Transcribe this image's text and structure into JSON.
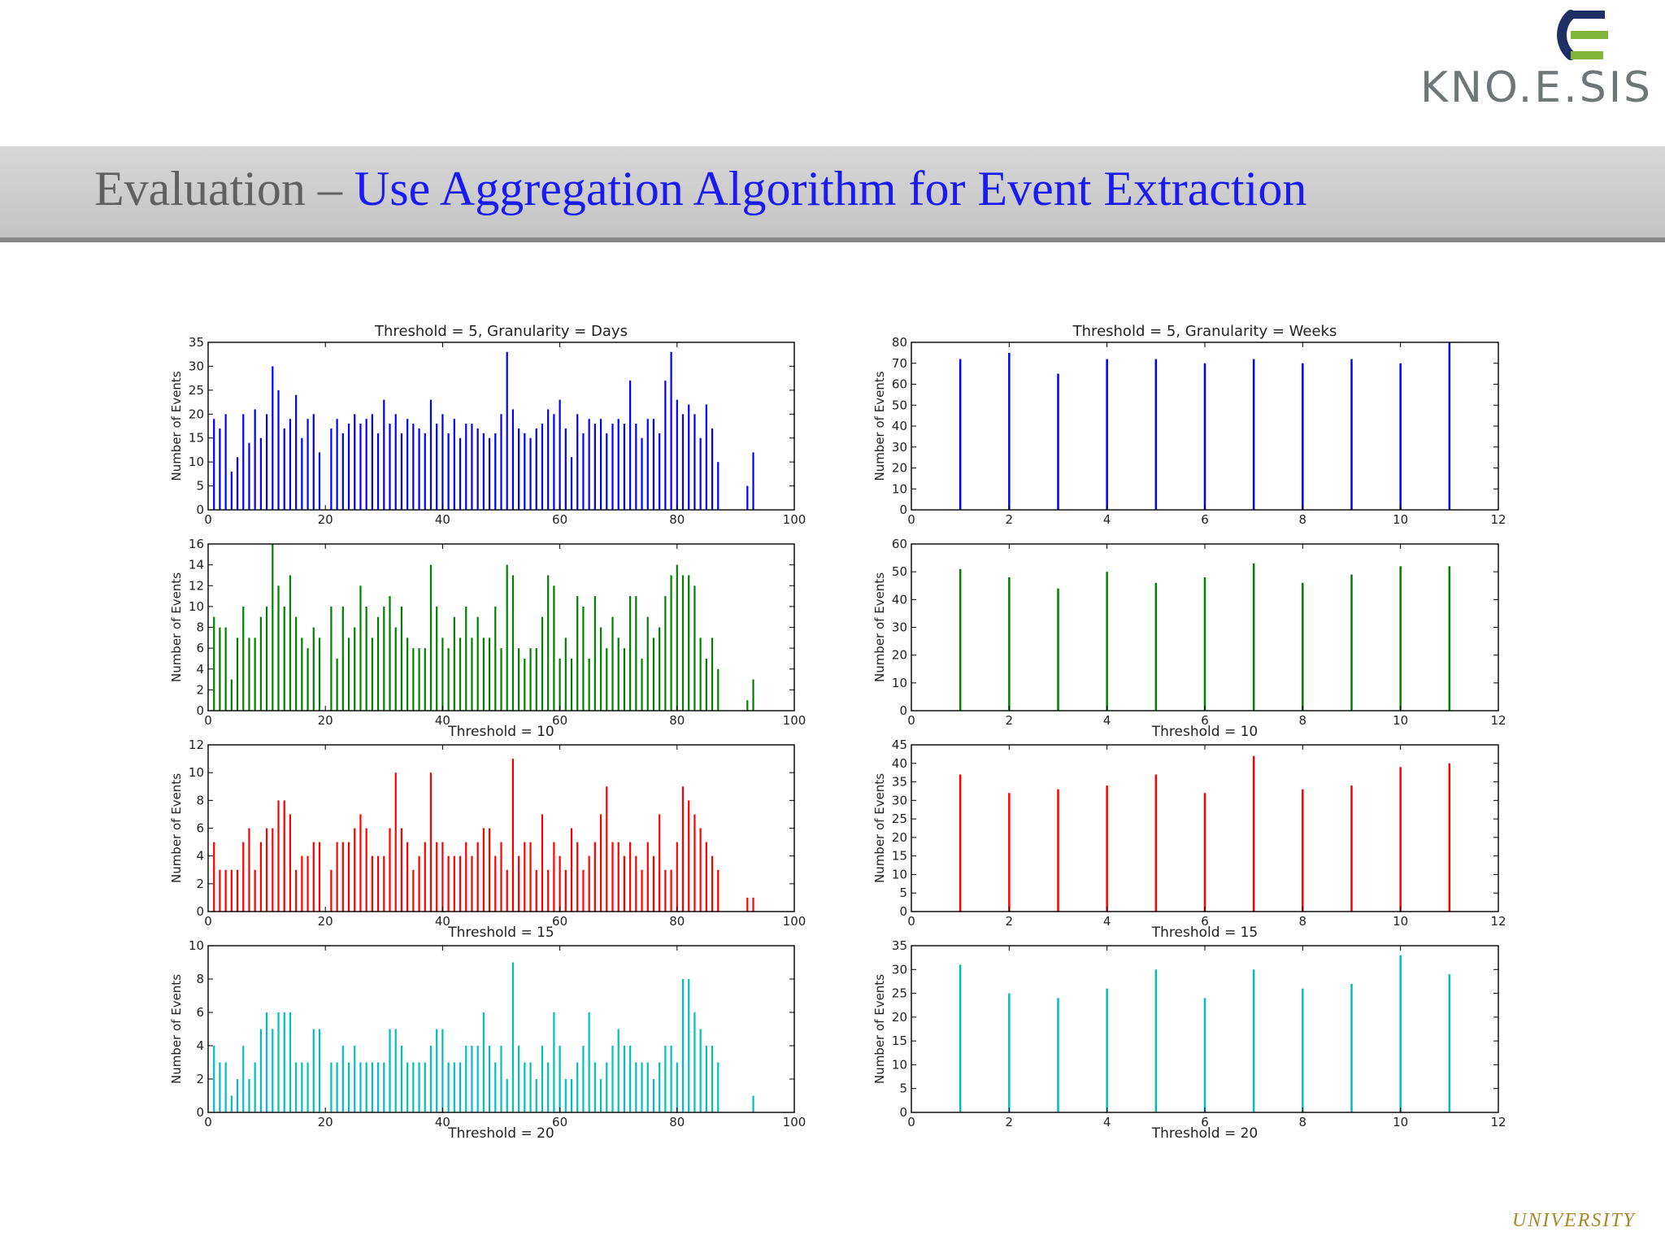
{
  "slide": {
    "title_lead": "Evaluation",
    "title_dash": "–",
    "title_rest": "Use Aggregation Algorithm for Event Extraction",
    "logo_text": "KNO.E.SIS",
    "footer_text": "UNIVERSITY",
    "colors": {
      "title_lead": "#606060",
      "title_rest": "#1a1af2",
      "band": "#c8c8c8",
      "logo_blue": "#1f2f63",
      "logo_green": "#7fb33a"
    }
  },
  "chart_data": [
    {
      "type": "bar",
      "title": "Threshold = 5, Granularity = Days",
      "xlabel": "",
      "ylabel": "Number of Events",
      "xlim": [
        0,
        100
      ],
      "ylim": [
        0,
        35
      ],
      "xticks": [
        0,
        20,
        40,
        60,
        80,
        100
      ],
      "yticks": [
        0,
        5,
        10,
        15,
        20,
        25,
        30,
        35
      ],
      "color": "#0000ff",
      "x": [
        1,
        2,
        3,
        4,
        5,
        6,
        7,
        8,
        9,
        10,
        11,
        12,
        13,
        14,
        15,
        16,
        17,
        18,
        19,
        20,
        21,
        22,
        23,
        24,
        25,
        26,
        27,
        28,
        29,
        30,
        31,
        32,
        33,
        34,
        35,
        36,
        37,
        38,
        39,
        40,
        41,
        42,
        43,
        44,
        45,
        46,
        47,
        48,
        49,
        50,
        51,
        52,
        53,
        54,
        55,
        56,
        57,
        58,
        59,
        60,
        61,
        62,
        63,
        64,
        65,
        66,
        67,
        68,
        69,
        70,
        71,
        72,
        73,
        74,
        75,
        76,
        77,
        78,
        79,
        80,
        81,
        82,
        83,
        84,
        85,
        86,
        87,
        92,
        93
      ],
      "values": [
        19,
        17,
        20,
        8,
        11,
        20,
        14,
        21,
        15,
        20,
        30,
        25,
        17,
        19,
        24,
        15,
        19,
        20,
        12,
        0,
        17,
        19,
        16,
        18,
        20,
        18,
        19,
        20,
        16,
        23,
        18,
        20,
        16,
        19,
        18,
        17,
        16,
        23,
        18,
        20,
        16,
        19,
        15,
        18,
        18,
        17,
        16,
        15,
        16,
        20,
        33,
        21,
        17,
        16,
        15,
        17,
        18,
        21,
        20,
        23,
        17,
        11,
        20,
        16,
        19,
        18,
        19,
        16,
        18,
        19,
        18,
        27,
        18,
        15,
        19,
        19,
        16,
        27,
        33,
        23,
        20,
        22,
        20,
        15,
        22,
        17,
        10,
        5,
        12
      ]
    },
    {
      "type": "bar",
      "title": "",
      "xlabel": "Threshold = 10",
      "ylabel": "Number of Events",
      "xlim": [
        0,
        100
      ],
      "ylim": [
        0,
        16
      ],
      "xticks": [
        0,
        20,
        40,
        60,
        80,
        100
      ],
      "yticks": [
        0,
        2,
        4,
        6,
        8,
        10,
        12,
        14,
        16
      ],
      "color": "#008000",
      "x": [
        1,
        2,
        3,
        4,
        5,
        6,
        7,
        8,
        9,
        10,
        11,
        12,
        13,
        14,
        15,
        16,
        17,
        18,
        19,
        20,
        21,
        22,
        23,
        24,
        25,
        26,
        27,
        28,
        29,
        30,
        31,
        32,
        33,
        34,
        35,
        36,
        37,
        38,
        39,
        40,
        41,
        42,
        43,
        44,
        45,
        46,
        47,
        48,
        49,
        50,
        51,
        52,
        53,
        54,
        55,
        56,
        57,
        58,
        59,
        60,
        61,
        62,
        63,
        64,
        65,
        66,
        67,
        68,
        69,
        70,
        71,
        72,
        73,
        74,
        75,
        76,
        77,
        78,
        79,
        80,
        81,
        82,
        83,
        84,
        85,
        86,
        87,
        92,
        93
      ],
      "values": [
        9,
        8,
        8,
        3,
        7,
        10,
        7,
        7,
        9,
        10,
        16,
        12,
        10,
        13,
        9,
        7,
        6,
        8,
        7,
        0,
        10,
        5,
        10,
        7,
        8,
        12,
        10,
        7,
        9,
        10,
        11,
        8,
        10,
        7,
        6,
        6,
        6,
        14,
        10,
        7,
        6,
        9,
        7,
        10,
        7,
        9,
        7,
        7,
        10,
        6,
        14,
        13,
        6,
        5,
        6,
        6,
        9,
        13,
        12,
        5,
        7,
        5,
        11,
        10,
        5,
        11,
        8,
        6,
        9,
        7,
        6,
        11,
        11,
        5,
        9,
        7,
        8,
        11,
        13,
        14,
        13,
        13,
        12,
        7,
        5,
        7,
        4,
        1,
        3
      ]
    },
    {
      "type": "bar",
      "title": "",
      "xlabel": "Threshold = 15",
      "ylabel": "Number of Events",
      "xlim": [
        0,
        100
      ],
      "ylim": [
        0,
        12
      ],
      "xticks": [
        0,
        20,
        40,
        60,
        80,
        100
      ],
      "yticks": [
        0,
        2,
        4,
        6,
        8,
        10,
        12
      ],
      "color": "#ff0000",
      "x": [
        1,
        2,
        3,
        4,
        5,
        6,
        7,
        8,
        9,
        10,
        11,
        12,
        13,
        14,
        15,
        16,
        17,
        18,
        19,
        20,
        21,
        22,
        23,
        24,
        25,
        26,
        27,
        28,
        29,
        30,
        31,
        32,
        33,
        34,
        35,
        36,
        37,
        38,
        39,
        40,
        41,
        42,
        43,
        44,
        45,
        46,
        47,
        48,
        49,
        50,
        51,
        52,
        53,
        54,
        55,
        56,
        57,
        58,
        59,
        60,
        61,
        62,
        63,
        64,
        65,
        66,
        67,
        68,
        69,
        70,
        71,
        72,
        73,
        74,
        75,
        76,
        77,
        78,
        79,
        80,
        81,
        82,
        83,
        84,
        85,
        86,
        87,
        92,
        93
      ],
      "values": [
        5,
        3,
        3,
        3,
        3,
        5,
        6,
        3,
        5,
        6,
        6,
        8,
        8,
        7,
        3,
        4,
        4,
        5,
        5,
        0,
        3,
        5,
        5,
        5,
        6,
        7,
        6,
        4,
        4,
        4,
        6,
        10,
        6,
        5,
        3,
        4,
        5,
        10,
        5,
        5,
        4,
        4,
        4,
        5,
        4,
        5,
        6,
        6,
        4,
        5,
        3,
        11,
        4,
        5,
        5,
        3,
        7,
        3,
        5,
        4,
        3,
        6,
        5,
        3,
        4,
        5,
        7,
        9,
        5,
        5,
        4,
        5,
        4,
        3,
        5,
        4,
        7,
        3,
        3,
        5,
        9,
        8,
        7,
        6,
        5,
        4,
        3,
        1,
        1
      ]
    },
    {
      "type": "bar",
      "title": "",
      "xlabel": "Threshold = 20",
      "ylabel": "Number of Events",
      "xlim": [
        0,
        100
      ],
      "ylim": [
        0,
        10
      ],
      "xticks": [
        0,
        20,
        40,
        60,
        80,
        100
      ],
      "yticks": [
        0,
        2,
        4,
        6,
        8,
        10
      ],
      "color": "#00bfbf",
      "x": [
        1,
        2,
        3,
        4,
        5,
        6,
        7,
        8,
        9,
        10,
        11,
        12,
        13,
        14,
        15,
        16,
        17,
        18,
        19,
        20,
        21,
        22,
        23,
        24,
        25,
        26,
        27,
        28,
        29,
        30,
        31,
        32,
        33,
        34,
        35,
        36,
        37,
        38,
        39,
        40,
        41,
        42,
        43,
        44,
        45,
        46,
        47,
        48,
        49,
        50,
        51,
        52,
        53,
        54,
        55,
        56,
        57,
        58,
        59,
        60,
        61,
        62,
        63,
        64,
        65,
        66,
        67,
        68,
        69,
        70,
        71,
        72,
        73,
        74,
        75,
        76,
        77,
        78,
        79,
        80,
        81,
        82,
        83,
        84,
        85,
        86,
        87,
        93
      ],
      "values": [
        4,
        3,
        3,
        1,
        2,
        4,
        2,
        3,
        5,
        6,
        5,
        6,
        6,
        6,
        3,
        3,
        3,
        5,
        5,
        0,
        3,
        3,
        4,
        3,
        4,
        3,
        3,
        3,
        3,
        3,
        5,
        5,
        4,
        3,
        3,
        3,
        3,
        4,
        5,
        5,
        3,
        3,
        3,
        4,
        4,
        4,
        6,
        4,
        3,
        4,
        2,
        9,
        4,
        3,
        3,
        2,
        4,
        3,
        6,
        4,
        2,
        2,
        3,
        4,
        6,
        3,
        2,
        3,
        4,
        5,
        4,
        4,
        3,
        3,
        3,
        2,
        3,
        4,
        4,
        3,
        8,
        8,
        6,
        5,
        4,
        4,
        3,
        1
      ]
    },
    {
      "type": "bar",
      "title": "Threshold = 5, Granularity = Weeks",
      "xlabel": "",
      "ylabel": "Number of Events",
      "xlim": [
        0,
        12
      ],
      "ylim": [
        0,
        80
      ],
      "xticks": [
        0,
        2,
        4,
        6,
        8,
        10,
        12
      ],
      "yticks": [
        0,
        10,
        20,
        30,
        40,
        50,
        60,
        70,
        80
      ],
      "color": "#0000ff",
      "x": [
        1,
        2,
        3,
        4,
        5,
        6,
        7,
        8,
        9,
        10,
        11
      ],
      "values": [
        72,
        75,
        65,
        72,
        72,
        70,
        72,
        70,
        72,
        70,
        80
      ]
    },
    {
      "type": "bar",
      "title": "",
      "xlabel": "Threshold = 10",
      "ylabel": "Number of Events",
      "xlim": [
        0,
        12
      ],
      "ylim": [
        0,
        60
      ],
      "xticks": [
        0,
        2,
        4,
        6,
        8,
        10,
        12
      ],
      "yticks": [
        0,
        10,
        20,
        30,
        40,
        50,
        60
      ],
      "color": "#008000",
      "x": [
        1,
        2,
        3,
        4,
        5,
        6,
        7,
        8,
        9,
        10,
        11
      ],
      "values": [
        51,
        48,
        44,
        50,
        46,
        48,
        53,
        46,
        49,
        52,
        52
      ]
    },
    {
      "type": "bar",
      "title": "",
      "xlabel": "Threshold = 15",
      "ylabel": "Number of Events",
      "xlim": [
        0,
        12
      ],
      "ylim": [
        0,
        45
      ],
      "xticks": [
        0,
        2,
        4,
        6,
        8,
        10,
        12
      ],
      "yticks": [
        0,
        5,
        10,
        15,
        20,
        25,
        30,
        35,
        40,
        45
      ],
      "color": "#ff0000",
      "x": [
        1,
        2,
        3,
        4,
        5,
        6,
        7,
        8,
        9,
        10,
        11
      ],
      "values": [
        37,
        32,
        33,
        34,
        37,
        32,
        42,
        33,
        34,
        39,
        40
      ]
    },
    {
      "type": "bar",
      "title": "",
      "xlabel": "Threshold = 20",
      "ylabel": "Number of Events",
      "xlim": [
        0,
        12
      ],
      "ylim": [
        0,
        35
      ],
      "xticks": [
        0,
        2,
        4,
        6,
        8,
        10,
        12
      ],
      "yticks": [
        0,
        5,
        10,
        15,
        20,
        25,
        30,
        35
      ],
      "color": "#00bfbf",
      "x": [
        1,
        2,
        3,
        4,
        5,
        6,
        7,
        8,
        9,
        10,
        11
      ],
      "values": [
        31,
        25,
        24,
        26,
        30,
        24,
        30,
        26,
        27,
        33,
        29
      ]
    }
  ]
}
